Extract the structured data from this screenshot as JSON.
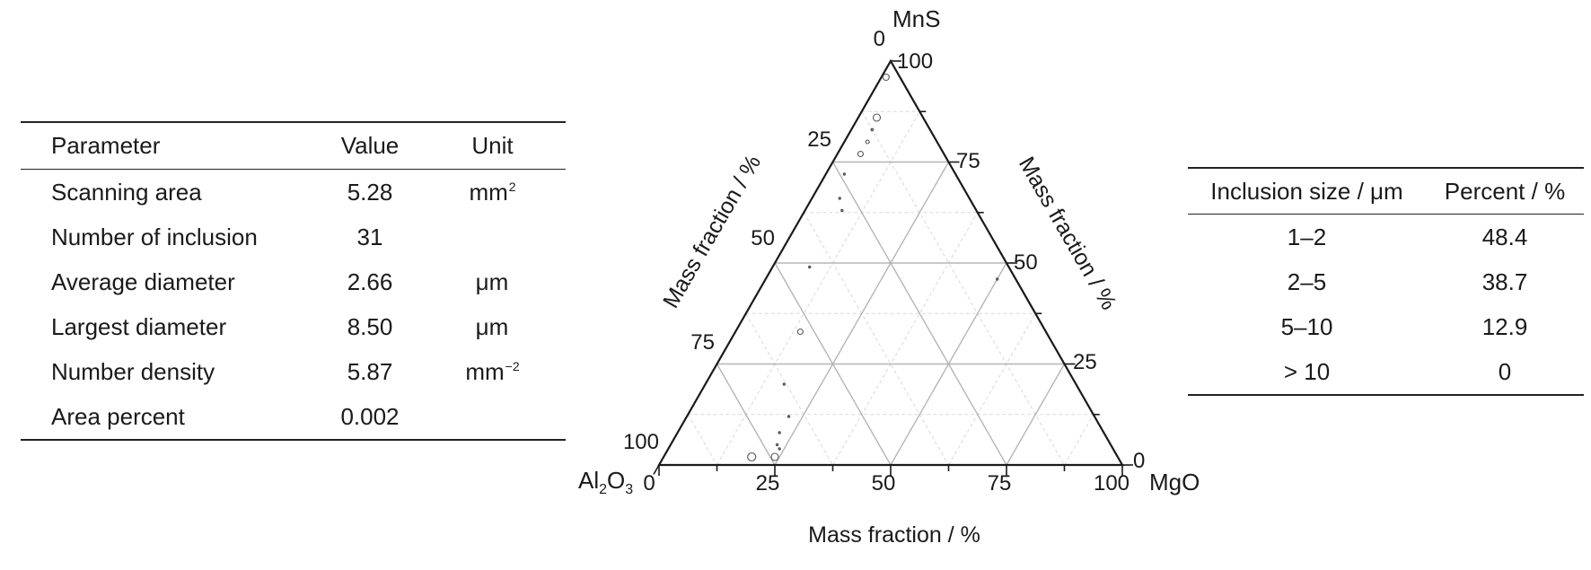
{
  "parameters_table": {
    "headers": [
      "Parameter",
      "Value",
      "Unit"
    ],
    "rows": [
      {
        "name": "Scanning area",
        "value": "5.28",
        "unit": "mm",
        "unit_sup": "2"
      },
      {
        "name": "Number of inclusion",
        "value": "31",
        "unit": "",
        "unit_sup": ""
      },
      {
        "name": "Average diameter",
        "value": "2.66",
        "unit": "μm",
        "unit_sup": ""
      },
      {
        "name": "Largest diameter",
        "value": "8.50",
        "unit": "μm",
        "unit_sup": ""
      },
      {
        "name": "Number density",
        "value": "5.87",
        "unit": "mm",
        "unit_sup": "−2"
      },
      {
        "name": "Area percent",
        "value": "0.002",
        "unit": "",
        "unit_sup": ""
      }
    ]
  },
  "size_table": {
    "headers": [
      "Inclusion size / μm",
      "Percent / %"
    ],
    "rows": [
      {
        "size": "1–2",
        "percent": "48.4"
      },
      {
        "size": "2–5",
        "percent": "38.7"
      },
      {
        "size": "5–10",
        "percent": "12.9"
      },
      {
        "size": "> 10",
        "percent": "0"
      }
    ]
  },
  "chart_data": {
    "type": "scatter",
    "subtype": "ternary",
    "vertices": {
      "left": "Al",
      "left_sub1": "2",
      "left_mid": "O",
      "left_sub2": "3",
      "top": "MnS",
      "right": "MgO"
    },
    "axis_label_bottom": "Mass fraction / %",
    "axis_label_left": "Mass fraction / %",
    "axis_label_right": "Mass fraction / %",
    "ticks": [
      "0",
      "25",
      "50",
      "75",
      "100"
    ],
    "grid": true,
    "grid_major_color": "#b5b5b5",
    "grid_minor_color": "#d9d9d9",
    "points": [
      {
        "MgO": 1,
        "MnS": 96,
        "size": 3.5
      },
      {
        "MgO": 4,
        "MnS": 86,
        "size": 4.0
      },
      {
        "MgO": 5,
        "MnS": 80,
        "size": 2.0
      },
      {
        "MgO": 4.5,
        "MnS": 83,
        "size": 1.2
      },
      {
        "MgO": 5,
        "MnS": 77,
        "size": 3.0
      },
      {
        "MgO": 4,
        "MnS": 72,
        "size": 1.0
      },
      {
        "MgO": 6,
        "MnS": 66,
        "size": 1.0
      },
      {
        "MgO": 8,
        "MnS": 63,
        "size": 1.0
      },
      {
        "MgO": 8,
        "MnS": 49,
        "size": 1.0
      },
      {
        "MgO": 14,
        "MnS": 33,
        "size": 3.0
      },
      {
        "MgO": 17,
        "MnS": 20,
        "size": 1.0
      },
      {
        "MgO": 22,
        "MnS": 12,
        "size": 1.0
      },
      {
        "MgO": 22,
        "MnS": 8,
        "size": 1.0
      },
      {
        "MgO": 23,
        "MnS": 5,
        "size": 1.0
      },
      {
        "MgO": 24,
        "MnS": 4,
        "size": 1.0
      },
      {
        "MgO": 24,
        "MnS": 2,
        "size": 4.0
      },
      {
        "MgO": 19,
        "MnS": 2,
        "size": 4.5
      },
      {
        "MgO": 50,
        "MnS": 46,
        "size": 1.0
      }
    ]
  }
}
